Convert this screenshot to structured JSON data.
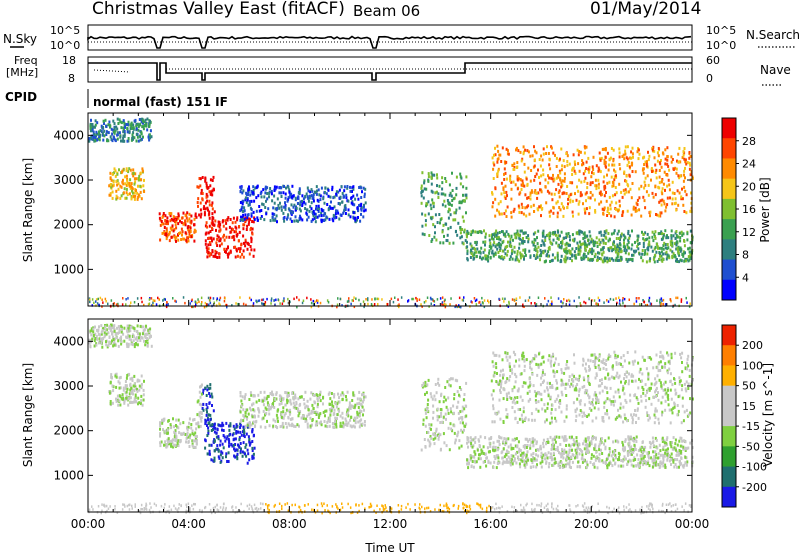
{
  "header": {
    "station": "Christmas Valley East (fitACF)",
    "beam": "Beam 06",
    "date": "01/May/2014"
  },
  "noise_panel": {
    "left_label": "N.Sky",
    "right_label": "N.Search",
    "left_ticks": [
      "10^5",
      "10^0"
    ],
    "right_ticks": [
      "10^5",
      "10^0"
    ]
  },
  "freq_panel": {
    "left_label_line1": "Freq",
    "left_label_line2": "[MHz]",
    "right_label": "Nave",
    "left_ticks": [
      "18",
      "8"
    ],
    "right_ticks": [
      "60",
      "0"
    ]
  },
  "cpid": {
    "label": "CPID",
    "value": "normal (fast) 151 IF"
  },
  "colors": {
    "power_scale": [
      "#0000ff",
      "#1f4fd0",
      "#2e7f7f",
      "#3aa050",
      "#7fbf30",
      "#f5c518",
      "#ff8a00",
      "#ff4500",
      "#ee0000"
    ],
    "velocity_scale": [
      "#1a1ae6",
      "#1f6f6f",
      "#2fa02f",
      "#7fd040",
      "#c8c8c8",
      "#c8c8c8",
      "#ffb000",
      "#ff7f00",
      "#ee2200"
    ]
  },
  "chart_data": [
    {
      "type": "heatmap",
      "title": "Power",
      "xlabel": "",
      "ylabel": "Slant Range [km]",
      "colorbar_label": "Power [dB]",
      "colorbar_ticks": [
        "28",
        "24",
        "20",
        "16",
        "12",
        "8",
        "4"
      ],
      "x_range_hours": [
        0,
        24
      ],
      "y_range_km": [
        180,
        4500
      ],
      "y_ticks": [
        "4000",
        "3000",
        "2000",
        "1000"
      ],
      "features": [
        {
          "t0": 0.0,
          "t1": 2.5,
          "r0": 3900,
          "r1": 4400,
          "level": 2
        },
        {
          "t0": 0.8,
          "t1": 2.2,
          "r0": 2600,
          "r1": 3300,
          "level": 5
        },
        {
          "t0": 2.8,
          "t1": 4.3,
          "r0": 1650,
          "r1": 2300,
          "level": 7
        },
        {
          "t0": 4.6,
          "t1": 6.6,
          "r0": 1300,
          "r1": 2200,
          "level": 8
        },
        {
          "t0": 4.3,
          "t1": 5.0,
          "r0": 2100,
          "r1": 3100,
          "level": 8
        },
        {
          "t0": 6.0,
          "t1": 11.0,
          "r0": 2100,
          "r1": 2900,
          "level": 1
        },
        {
          "t0": 13.2,
          "t1": 15.0,
          "r0": 1600,
          "r1": 3200,
          "level": 3
        },
        {
          "t0": 16.0,
          "t1": 24.0,
          "r0": 2200,
          "r1": 3800,
          "level": 6
        },
        {
          "t0": 15.0,
          "t1": 24.0,
          "r0": 1200,
          "r1": 1900,
          "level": 3
        }
      ]
    },
    {
      "type": "heatmap",
      "title": "Velocity",
      "xlabel": "Time UT",
      "ylabel": "Slant Range [km]",
      "colorbar_label": "Velocity [m s^-1]",
      "colorbar_ticks": [
        "200",
        "100",
        "50",
        "15",
        "-15",
        "-50",
        "-100",
        "-200"
      ],
      "x_range_hours": [
        0,
        24
      ],
      "x_ticks": [
        "00:00",
        "04:00",
        "08:00",
        "12:00",
        "16:00",
        "20:00",
        "00:00"
      ],
      "y_range_km": [
        180,
        4500
      ],
      "y_ticks": [
        "4000",
        "3000",
        "2000",
        "1000"
      ]
    }
  ]
}
